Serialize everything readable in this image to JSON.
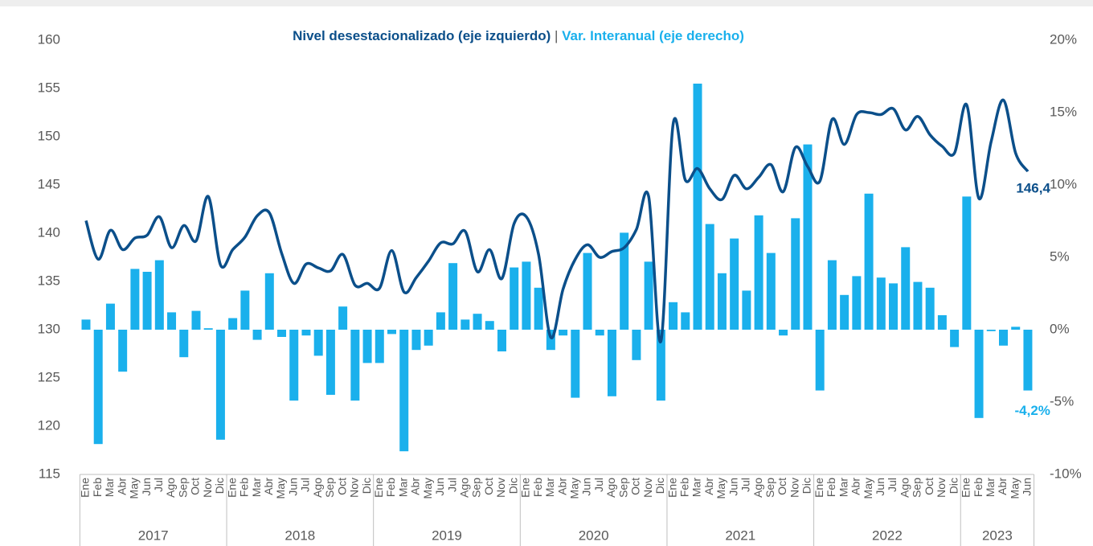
{
  "chart_data": {
    "type": "bar_line",
    "title_separator": "|",
    "groups": [
      {
        "label": "2017",
        "categories": [
          "Ene",
          "Feb",
          "Mar",
          "Abr",
          "May",
          "Jun",
          "Jul",
          "Ago",
          "Sep",
          "Oct",
          "Nov",
          "Dic"
        ]
      },
      {
        "label": "2018",
        "categories": [
          "Ene",
          "Feb",
          "Mar",
          "Abr",
          "May",
          "Jun",
          "Jul",
          "Ago",
          "Sep",
          "Oct",
          "Nov",
          "Dic"
        ]
      },
      {
        "label": "2019",
        "categories": [
          "Ene",
          "Feb",
          "Mar",
          "Abr",
          "May",
          "Jun",
          "Jul",
          "Ago",
          "Sep",
          "Oct",
          "Nov",
          "Dic"
        ]
      },
      {
        "label": "2020",
        "categories": [
          "Ene",
          "Feb",
          "Mar",
          "Abr",
          "May",
          "Jun",
          "Jul",
          "Ago",
          "Sep",
          "Oct",
          "Nov",
          "Dic"
        ]
      },
      {
        "label": "2021",
        "categories": [
          "Ene",
          "Feb",
          "Mar",
          "Abr",
          "May",
          "Jun",
          "Jul",
          "Ago",
          "Sep",
          "Oct",
          "Nov",
          "Dic"
        ]
      },
      {
        "label": "2022",
        "categories": [
          "Ene",
          "Feb",
          "Mar",
          "Abr",
          "May",
          "Jun",
          "Jul",
          "Ago",
          "Sep",
          "Oct",
          "Nov",
          "Dic"
        ]
      },
      {
        "label": "2023",
        "categories": [
          "Ene",
          "Feb",
          "Mar",
          "Abr",
          "May",
          "Jun"
        ]
      }
    ],
    "series": [
      {
        "name": "Var. Interanual (eje derecho)",
        "type": "bar",
        "axis": "y2",
        "color": "#1ab0ec",
        "values": [
          0.7,
          -7.9,
          1.8,
          -2.9,
          4.2,
          4.0,
          4.8,
          1.2,
          -1.9,
          1.3,
          0.1,
          -7.6,
          0.8,
          2.7,
          -0.7,
          3.9,
          -0.5,
          -4.9,
          -0.4,
          -1.8,
          -4.5,
          1.6,
          -4.9,
          -2.3,
          -2.3,
          -0.3,
          -8.4,
          -1.4,
          -1.1,
          1.2,
          4.6,
          0.7,
          1.1,
          0.6,
          -1.5,
          4.3,
          4.7,
          2.9,
          -1.4,
          -0.4,
          -4.7,
          5.3,
          -0.4,
          -4.6,
          6.7,
          -2.1,
          4.7,
          -4.9,
          1.9,
          1.2,
          17.0,
          7.3,
          3.9,
          6.3,
          2.7,
          7.9,
          5.3,
          -0.4,
          7.7,
          12.8,
          -4.2,
          4.8,
          2.4,
          3.7,
          9.4,
          3.6,
          3.2,
          5.7,
          3.3,
          2.9,
          1.0,
          -1.2,
          9.2,
          -6.1,
          -0.1,
          -1.1,
          0.2,
          -4.2
        ],
        "value_labels": [
          null,
          null,
          null,
          null,
          null,
          null,
          null,
          null,
          null,
          null,
          null,
          null,
          null,
          null,
          null,
          null,
          null,
          null,
          null,
          null,
          null,
          null,
          null,
          null,
          null,
          null,
          null,
          null,
          null,
          null,
          null,
          null,
          null,
          null,
          null,
          null,
          null,
          null,
          null,
          null,
          null,
          null,
          null,
          null,
          null,
          null,
          null,
          null,
          null,
          null,
          null,
          null,
          null,
          null,
          null,
          null,
          null,
          null,
          null,
          null,
          null,
          null,
          null,
          null,
          null,
          null,
          null,
          null,
          null,
          null,
          null,
          null,
          null,
          null,
          null,
          null,
          null,
          "-4,2%"
        ]
      },
      {
        "name": "Nivel desestacionalizado (eje izquierdo)",
        "type": "line",
        "axis": "y",
        "color": "#0b4f8a",
        "values": [
          141.3,
          137.3,
          140.3,
          138.3,
          139.5,
          139.8,
          141.7,
          138.5,
          140.8,
          139.2,
          143.8,
          136.7,
          138.3,
          139.6,
          141.8,
          142.1,
          137.9,
          134.8,
          136.8,
          136.4,
          136.1,
          137.8,
          134.6,
          134.8,
          134.3,
          138.2,
          133.9,
          135.4,
          137.1,
          139.0,
          138.9,
          140.2,
          136.0,
          138.3,
          135.3,
          141.0,
          141.7,
          137.8,
          129.2,
          134.2,
          137.3,
          138.8,
          137.5,
          138.1,
          138.5,
          140.4,
          143.8,
          128.8,
          151.3,
          145.5,
          146.7,
          144.6,
          143.5,
          146.0,
          144.6,
          145.8,
          147.1,
          144.3,
          148.9,
          146.9,
          145.4,
          151.8,
          149.2,
          152.3,
          152.5,
          152.3,
          152.9,
          150.7,
          152.1,
          150.2,
          149.0,
          148.3,
          153.3,
          143.6,
          149.5,
          153.8,
          148.3,
          146.4
        ],
        "value_labels": [
          null,
          null,
          null,
          null,
          null,
          null,
          null,
          null,
          null,
          null,
          null,
          null,
          null,
          null,
          null,
          null,
          null,
          null,
          null,
          null,
          null,
          null,
          null,
          null,
          null,
          null,
          null,
          null,
          null,
          null,
          null,
          null,
          null,
          null,
          null,
          null,
          null,
          null,
          null,
          null,
          null,
          null,
          null,
          null,
          null,
          null,
          null,
          null,
          null,
          null,
          null,
          null,
          null,
          null,
          null,
          null,
          null,
          null,
          null,
          null,
          null,
          null,
          null,
          null,
          null,
          null,
          null,
          null,
          null,
          null,
          null,
          null,
          null,
          null,
          null,
          null,
          null,
          "146,4"
        ]
      }
    ],
    "ylim": [
      115,
      160
    ],
    "yticks": [
      115,
      120,
      125,
      130,
      135,
      140,
      145,
      150,
      155,
      160
    ],
    "y2lim": [
      -10,
      20
    ],
    "y2ticks": [
      {
        "value": -10,
        "label": "-10%"
      },
      {
        "value": -5,
        "label": "-5%"
      },
      {
        "value": 0,
        "label": "0%"
      },
      {
        "value": 5,
        "label": "5%"
      },
      {
        "value": 10,
        "label": "10%"
      },
      {
        "value": 15,
        "label": "15%"
      },
      {
        "value": 20,
        "label": "20%"
      }
    ]
  }
}
